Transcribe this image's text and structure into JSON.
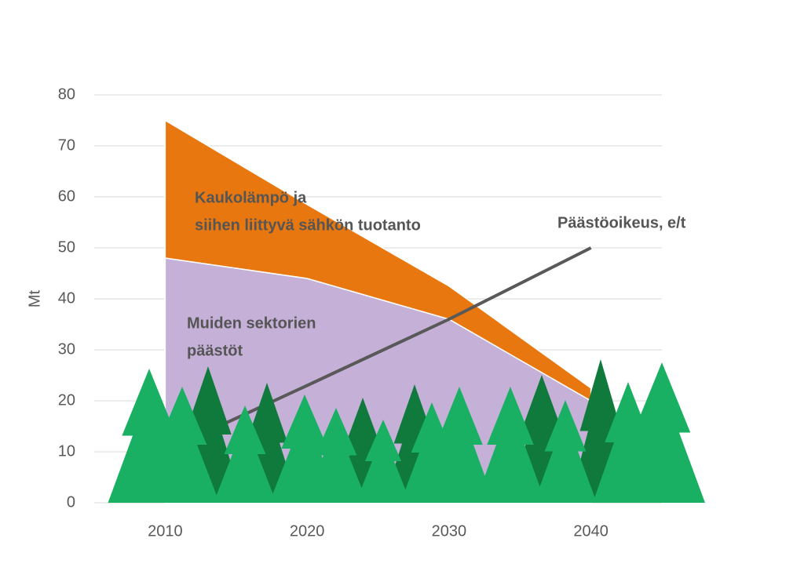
{
  "chart_data": {
    "type": "stacked-area-line",
    "y_label": "Mt",
    "x": [
      2010,
      2020,
      2030,
      2040
    ],
    "xlim": [
      2005,
      2045
    ],
    "xticks": [
      2010,
      2020,
      2030,
      2040
    ],
    "ylim": [
      0,
      80
    ],
    "yticks": [
      0,
      10,
      20,
      30,
      40,
      50,
      60,
      70,
      80
    ],
    "grid": true,
    "series": [
      {
        "color": "#c5b0d8",
        "values": [
          48,
          44,
          36,
          20
        ]
      },
      {
        "color": "#e8770f",
        "values": [
          27,
          14.5,
          6.5,
          2.5
        ]
      }
    ],
    "line": {
      "color": "#595959",
      "x": [
        2013,
        2020,
        2030,
        2040
      ],
      "values": [
        14,
        23,
        36,
        50
      ]
    },
    "annotations": [
      {
        "lines": [
          "Kaukolämpö ja",
          "siihen liittyvä sähkön tuotanto"
        ]
      },
      {
        "lines": [
          "Muiden sektorien",
          "päästöt"
        ]
      },
      {
        "lines": [
          "Päästöoikeus, e/t"
        ]
      }
    ]
  }
}
